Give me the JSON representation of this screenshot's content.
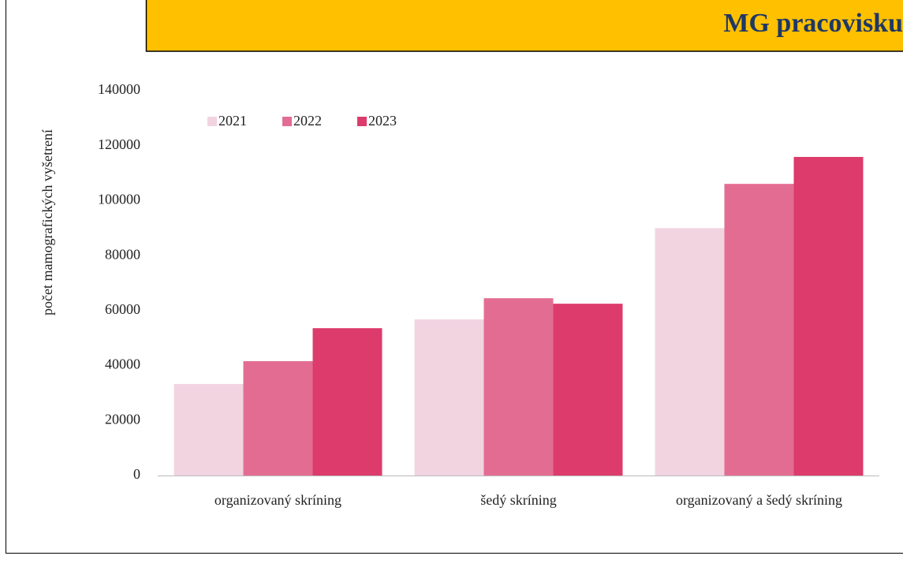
{
  "chart_data": {
    "type": "bar",
    "title": "MG pracovisku",
    "y_label": "počet mamografických vyšetrení",
    "categories": [
      "organizovaný  skríning",
      "šedý skríning",
      "organizovaný a šedý skríning"
    ],
    "series": [
      {
        "name": "2021",
        "color": "#F2D4E1",
        "values": [
          33300,
          56800,
          90000
        ]
      },
      {
        "name": "2022",
        "color": "#E36D92",
        "values": [
          41600,
          64500,
          106100
        ]
      },
      {
        "name": "2023",
        "color": "#DC3B6C",
        "values": [
          53600,
          62500,
          115900
        ]
      }
    ],
    "ylim": [
      0,
      140000
    ],
    "yticks": [
      0,
      20000,
      40000,
      60000,
      80000,
      100000,
      120000,
      140000
    ],
    "grid": false,
    "legend": "top-left"
  }
}
